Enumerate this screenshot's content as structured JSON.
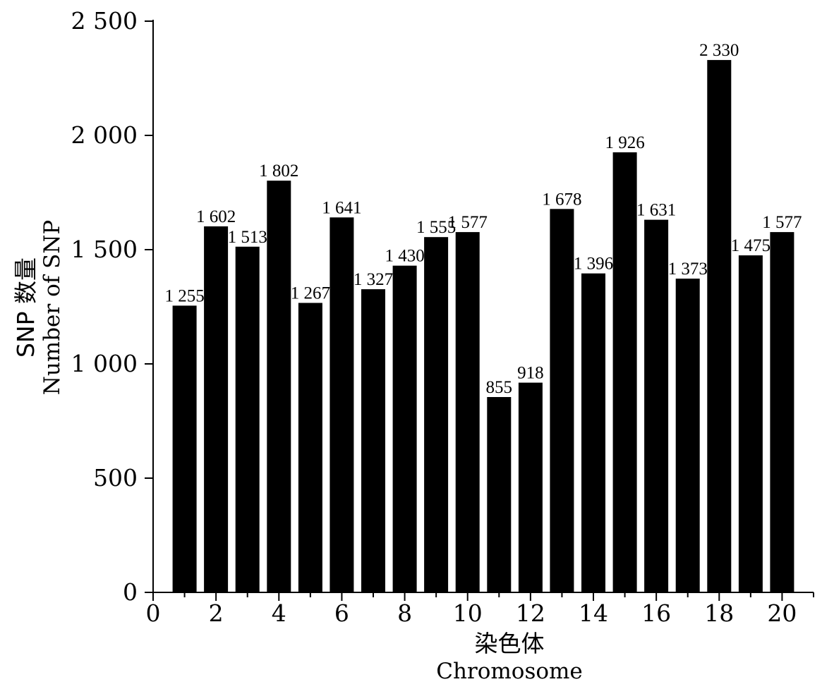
{
  "chart_data": {
    "type": "bar",
    "categories": [
      1,
      2,
      3,
      4,
      5,
      6,
      7,
      8,
      9,
      10,
      11,
      12,
      13,
      14,
      15,
      16,
      17,
      18,
      19,
      20
    ],
    "values": [
      1255,
      1602,
      1513,
      1802,
      1267,
      1641,
      1327,
      1430,
      1555,
      1577,
      855,
      918,
      1678,
      1396,
      1926,
      1631,
      1373,
      2330,
      1475,
      1577
    ],
    "data_labels": [
      "1 255",
      "1 602",
      "1 513",
      "1 802",
      "1 267",
      "1 641",
      "1 327",
      "1 430",
      "1 555",
      "1 577",
      "855",
      "918",
      "1 678",
      "1 396",
      "1 926",
      "1 631",
      "1 373",
      "2 330",
      "1 475",
      "1 577"
    ],
    "xlabel_cn": "染色体",
    "xlabel_en": "Chromosome",
    "ylabel_cn": "SNP 数量",
    "ylabel_en": "Number of SNP",
    "xlim": [
      0,
      21
    ],
    "ylim": [
      0,
      2500
    ],
    "x_ticks": [
      0,
      2,
      4,
      6,
      8,
      10,
      12,
      14,
      16,
      18,
      20
    ],
    "x_tick_labels": [
      "0",
      "2",
      "4",
      "6",
      "8",
      "10",
      "12",
      "14",
      "16",
      "18",
      "20"
    ],
    "y_ticks": [
      0,
      500,
      1000,
      1500,
      2000,
      2500
    ],
    "y_tick_labels": [
      "0",
      "500",
      "1 000",
      "1 500",
      "2 000",
      "2 500"
    ],
    "grid": false,
    "bar_color": "#000000"
  }
}
